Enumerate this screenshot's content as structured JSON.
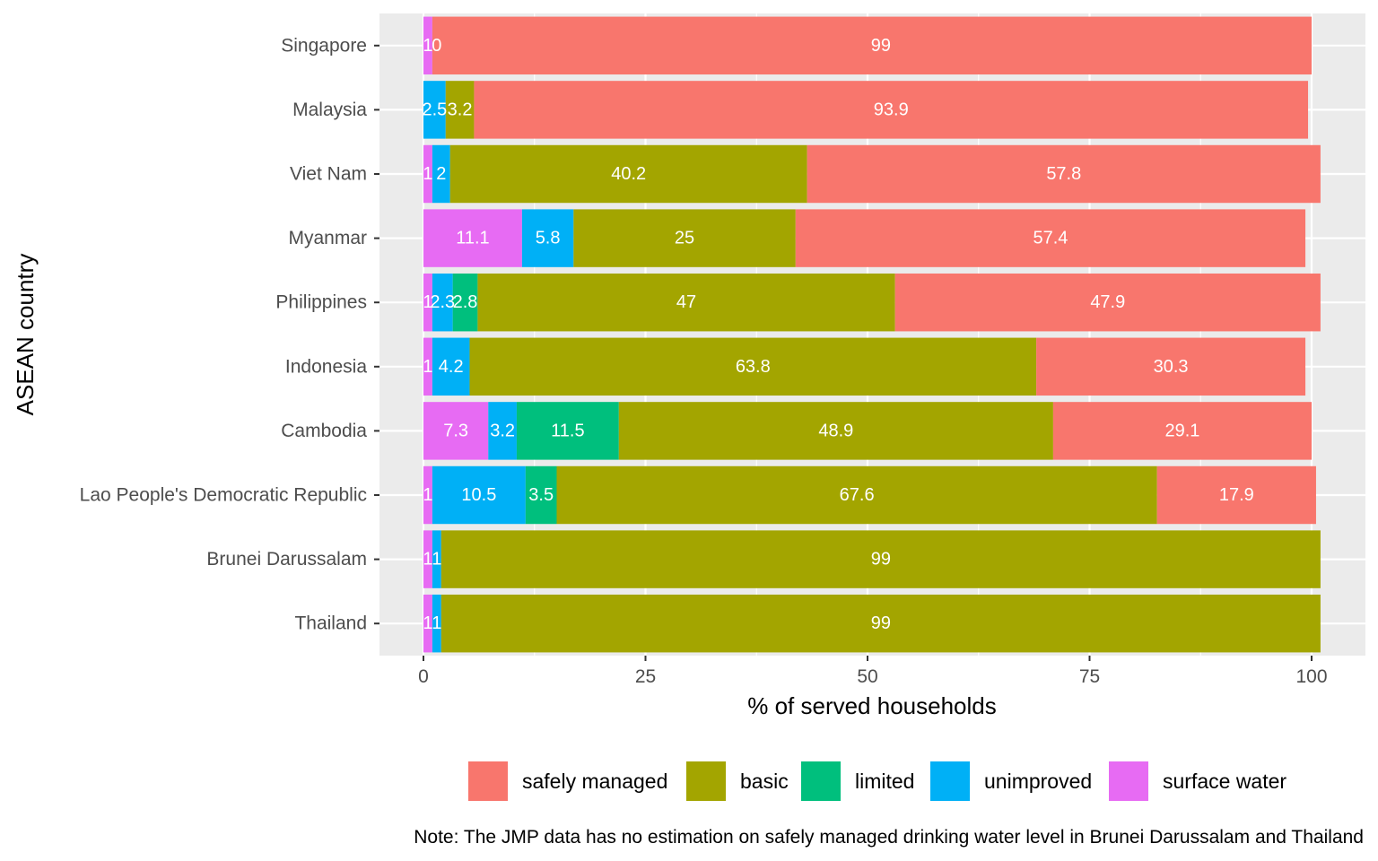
{
  "chart_data": {
    "type": "bar",
    "orientation": "horizontal",
    "stacked": true,
    "xlabel": "% of served households",
    "ylabel": "ASEAN country",
    "xlim": [
      0,
      100
    ],
    "x_ticks": [
      0,
      25,
      50,
      75,
      100
    ],
    "grid": true,
    "legend_position": "bottom",
    "categories": [
      "Singapore",
      "Malaysia",
      "Viet Nam",
      "Myanmar",
      "Philippines",
      "Indonesia",
      "Cambodia",
      "Lao People's Democratic Republic",
      "Brunei Darussalam",
      "Thailand"
    ],
    "stack_order": [
      "surface water",
      "unimproved",
      "limited",
      "basic",
      "safely managed"
    ],
    "series": [
      {
        "name": "safely managed",
        "color": "#F8766D",
        "values": [
          99,
          93.9,
          57.8,
          57.4,
          47.9,
          30.3,
          29.1,
          17.9,
          null,
          null
        ]
      },
      {
        "name": "basic",
        "color": "#A3A500",
        "values": [
          0,
          3.2,
          40.2,
          25,
          47,
          63.8,
          48.9,
          67.6,
          99,
          99
        ]
      },
      {
        "name": "limited",
        "color": "#00BF7D",
        "values": [
          0,
          0,
          0,
          0,
          2.8,
          0,
          11.5,
          3.5,
          0,
          0
        ]
      },
      {
        "name": "unimproved",
        "color": "#00B0F6",
        "values": [
          0,
          2.5,
          2,
          5.8,
          2.3,
          4.2,
          3.2,
          10.5,
          1,
          1
        ]
      },
      {
        "name": "surface water",
        "color": "#E76BF3",
        "values": [
          1,
          0,
          1,
          11.1,
          1,
          1,
          7.3,
          1,
          1,
          1
        ]
      }
    ],
    "bar_labels": [
      [
        {
          "text": "1",
          "x": 0.5
        },
        {
          "text": "0",
          "x": 1.5
        },
        {
          "text": "99",
          "x": 51.5
        }
      ],
      [
        {
          "text": "2.5",
          "x": 1.25
        },
        {
          "text": "3.2",
          "x": 4.1
        },
        {
          "text": "93.9",
          "x": 52.65
        }
      ],
      [
        {
          "text": "1",
          "x": 0.5
        },
        {
          "text": "2",
          "x": 2
        },
        {
          "text": "40.2",
          "x": 23.1
        },
        {
          "text": "57.8",
          "x": 72.1
        }
      ],
      [
        {
          "text": "11.1",
          "x": 5.55
        },
        {
          "text": "5.8",
          "x": 14
        },
        {
          "text": "25",
          "x": 29.4
        },
        {
          "text": "57.4",
          "x": 70.6
        }
      ],
      [
        {
          "text": "1",
          "x": 0.5
        },
        {
          "text": "2.3",
          "x": 2.15
        },
        {
          "text": "2.8",
          "x": 4.7
        },
        {
          "text": "47",
          "x": 29.6
        },
        {
          "text": "47.9",
          "x": 77.05
        }
      ],
      [
        {
          "text": "1",
          "x": 0.5
        },
        {
          "text": "4.2",
          "x": 3.1
        },
        {
          "text": "63.8",
          "x": 37.1
        },
        {
          "text": "30.3",
          "x": 84.15
        }
      ],
      [
        {
          "text": "7.3",
          "x": 3.65
        },
        {
          "text": "3.2",
          "x": 8.9
        },
        {
          "text": "11.5",
          "x": 16.25
        },
        {
          "text": "48.9",
          "x": 46.45
        },
        {
          "text": "29.1",
          "x": 85.45
        }
      ],
      [
        {
          "text": "1",
          "x": 0.5
        },
        {
          "text": "10.5",
          "x": 6.25
        },
        {
          "text": "3.5",
          "x": 13.25
        },
        {
          "text": "67.6",
          "x": 48.8
        },
        {
          "text": "17.9",
          "x": 91.55
        }
      ],
      [
        {
          "text": "1",
          "x": 0.5
        },
        {
          "text": "1",
          "x": 1.5
        },
        {
          "text": "99",
          "x": 51.5
        }
      ],
      [
        {
          "text": "1",
          "x": 0.5
        },
        {
          "text": "1",
          "x": 1.5
        },
        {
          "text": "99",
          "x": 51.5
        }
      ]
    ],
    "legend": [
      "safely managed",
      "basic",
      "limited",
      "unimproved",
      "surface water"
    ],
    "note": "Note: The JMP data has no estimation on safely managed drinking water level in Brunei Darussalam and Thailand"
  }
}
